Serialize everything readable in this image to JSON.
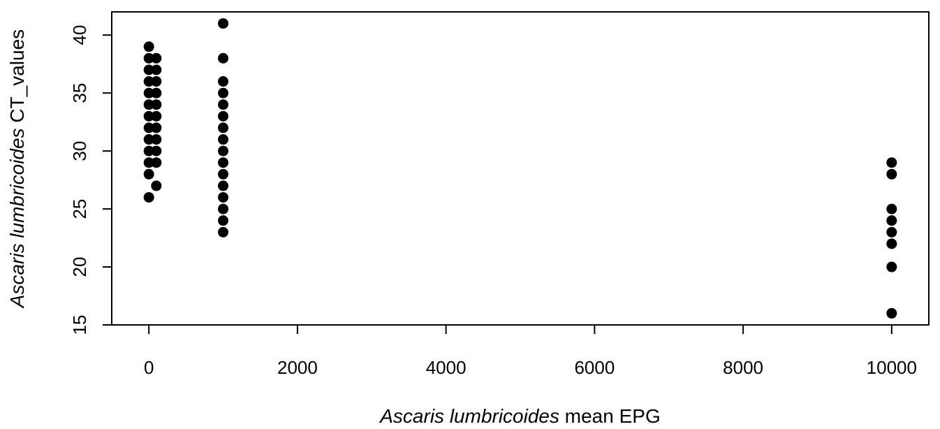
{
  "chart_data": {
    "type": "scatter",
    "xlabel_italic": "Ascaris lumbricoides",
    "xlabel_rest": " mean EPG",
    "ylabel_italic": "Ascaris lumbricoides",
    "ylabel_rest": " CT_values",
    "xlim": [
      -500,
      10500
    ],
    "ylim": [
      15,
      42
    ],
    "x_ticks": [
      0,
      2000,
      4000,
      6000,
      8000,
      10000
    ],
    "y_ticks": [
      15,
      20,
      25,
      30,
      35,
      40
    ],
    "grid": false,
    "marker_color": "#000000",
    "points": [
      {
        "x": 0,
        "y": 26
      },
      {
        "x": 0,
        "y": 28
      },
      {
        "x": 0,
        "y": 29
      },
      {
        "x": 0,
        "y": 30
      },
      {
        "x": 0,
        "y": 31
      },
      {
        "x": 0,
        "y": 32
      },
      {
        "x": 0,
        "y": 33
      },
      {
        "x": 0,
        "y": 34
      },
      {
        "x": 0,
        "y": 35
      },
      {
        "x": 0,
        "y": 36
      },
      {
        "x": 0,
        "y": 37
      },
      {
        "x": 0,
        "y": 38
      },
      {
        "x": 0,
        "y": 39
      },
      {
        "x": 100,
        "y": 27
      },
      {
        "x": 100,
        "y": 29
      },
      {
        "x": 100,
        "y": 30
      },
      {
        "x": 100,
        "y": 31
      },
      {
        "x": 100,
        "y": 32
      },
      {
        "x": 100,
        "y": 33
      },
      {
        "x": 100,
        "y": 34
      },
      {
        "x": 100,
        "y": 35
      },
      {
        "x": 100,
        "y": 36
      },
      {
        "x": 100,
        "y": 37
      },
      {
        "x": 100,
        "y": 38
      },
      {
        "x": 1000,
        "y": 23
      },
      {
        "x": 1000,
        "y": 24
      },
      {
        "x": 1000,
        "y": 25
      },
      {
        "x": 1000,
        "y": 26
      },
      {
        "x": 1000,
        "y": 27
      },
      {
        "x": 1000,
        "y": 28
      },
      {
        "x": 1000,
        "y": 29
      },
      {
        "x": 1000,
        "y": 30
      },
      {
        "x": 1000,
        "y": 31
      },
      {
        "x": 1000,
        "y": 32
      },
      {
        "x": 1000,
        "y": 33
      },
      {
        "x": 1000,
        "y": 34
      },
      {
        "x": 1000,
        "y": 35
      },
      {
        "x": 1000,
        "y": 36
      },
      {
        "x": 1000,
        "y": 38
      },
      {
        "x": 1000,
        "y": 41
      },
      {
        "x": 10000,
        "y": 16
      },
      {
        "x": 10000,
        "y": 20
      },
      {
        "x": 10000,
        "y": 22
      },
      {
        "x": 10000,
        "y": 23
      },
      {
        "x": 10000,
        "y": 24
      },
      {
        "x": 10000,
        "y": 25
      },
      {
        "x": 10000,
        "y": 28
      },
      {
        "x": 10000,
        "y": 29
      }
    ]
  }
}
